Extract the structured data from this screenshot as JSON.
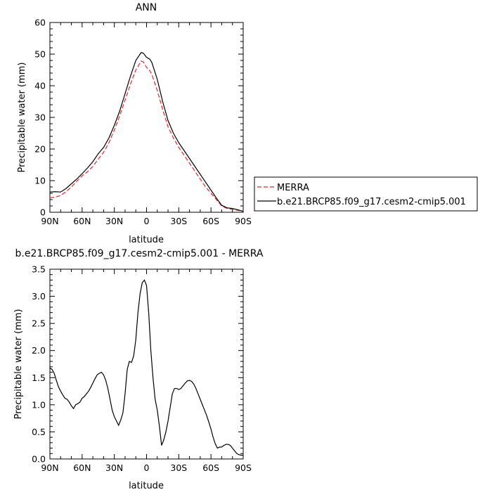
{
  "chart_data": [
    {
      "type": "line",
      "title": "ANN",
      "xlabel": "latitude",
      "ylabel": "Precipitable water (mm)",
      "xlim": [
        90,
        -90
      ],
      "ylim": [
        0,
        60
      ],
      "x_ticks": [
        90,
        60,
        30,
        0,
        -30,
        -60,
        -90
      ],
      "x_tick_labels": [
        "90N",
        "60N",
        "30N",
        "0",
        "30S",
        "60S",
        "90S"
      ],
      "y_ticks": [
        0,
        10,
        20,
        30,
        40,
        50,
        60
      ],
      "y_tick_labels": [
        "0",
        "10",
        "20",
        "30",
        "40",
        "50",
        "60"
      ],
      "legend_position": "right",
      "series": [
        {
          "name": "MERRA",
          "color": "#e8242a",
          "dash": "dashed",
          "x": [
            90,
            85,
            80,
            75,
            70,
            65,
            60,
            55,
            50,
            45,
            40,
            35,
            30,
            25,
            20,
            15,
            10,
            5,
            3,
            0,
            -3,
            -5,
            -10,
            -15,
            -20,
            -25,
            -30,
            -35,
            -40,
            -45,
            -50,
            -55,
            -60,
            -65,
            -70,
            -75,
            -80,
            -85,
            -90
          ],
          "y": [
            4.6,
            4.8,
            5.3,
            6.5,
            8.0,
            9.8,
            11.5,
            12.8,
            14.5,
            16.8,
            19.0,
            22.0,
            26.0,
            30.5,
            35.5,
            40.5,
            45.0,
            47.8,
            47.5,
            45.8,
            44.8,
            43.5,
            38.5,
            32.5,
            27.0,
            23.5,
            20.5,
            18.0,
            15.5,
            13.0,
            10.5,
            8.0,
            6.0,
            4.0,
            2.0,
            1.2,
            0.9,
            0.6,
            0.3
          ]
        },
        {
          "name": "b.e21.BRCP85.f09_g17.cesm2-cmip5.001",
          "color": "#000000",
          "dash": "solid",
          "x": [
            90,
            85,
            80,
            75,
            70,
            65,
            60,
            55,
            50,
            45,
            40,
            35,
            30,
            25,
            20,
            15,
            10,
            5,
            3,
            0,
            -3,
            -5,
            -10,
            -15,
            -20,
            -25,
            -30,
            -35,
            -40,
            -45,
            -50,
            -55,
            -60,
            -65,
            -70,
            -75,
            -80,
            -85,
            -90
          ],
          "y": [
            6.4,
            6.5,
            6.4,
            7.5,
            9.0,
            10.5,
            12.2,
            14.0,
            16.0,
            18.5,
            20.5,
            23.5,
            27.5,
            32.0,
            37.5,
            43.0,
            48.0,
            50.5,
            50.3,
            49.0,
            48.4,
            47.3,
            42.0,
            35.0,
            29.0,
            25.0,
            22.0,
            19.5,
            17.0,
            14.5,
            12.0,
            9.5,
            7.0,
            4.5,
            2.2,
            1.4,
            1.2,
            0.8,
            0.3
          ]
        }
      ]
    },
    {
      "type": "line",
      "title": "b.e21.BRCP85.f09_g17.cesm2-cmip5.001 - MERRA",
      "xlabel": "latitude",
      "ylabel": "Precipitable water (mm)",
      "xlim": [
        90,
        -90
      ],
      "ylim": [
        0,
        3.5
      ],
      "x_ticks": [
        90,
        60,
        30,
        0,
        -30,
        -60,
        -90
      ],
      "x_tick_labels": [
        "90N",
        "60N",
        "30N",
        "0",
        "30S",
        "60S",
        "90S"
      ],
      "y_ticks": [
        0,
        0.5,
        1.0,
        1.5,
        2.0,
        2.5,
        3.0,
        3.5
      ],
      "y_tick_labels": [
        "0.0",
        "0.5",
        "1.0",
        "1.5",
        "2.0",
        "2.5",
        "3.0",
        "3.5"
      ],
      "series": [
        {
          "color": "#000000",
          "dash": "solid",
          "x": [
            90,
            88,
            86,
            84,
            82,
            80,
            78,
            76,
            74,
            72,
            70,
            68,
            66,
            64,
            62,
            60,
            58,
            56,
            54,
            52,
            50,
            48,
            46,
            44,
            42,
            40,
            38,
            36,
            34,
            32,
            30,
            28,
            26,
            24,
            22,
            20,
            18,
            16,
            14,
            12,
            10,
            8,
            6,
            4,
            2,
            0,
            -2,
            -4,
            -6,
            -8,
            -10,
            -12,
            -14,
            -16,
            -18,
            -20,
            -22,
            -24,
            -26,
            -28,
            -30,
            -32,
            -34,
            -36,
            -38,
            -40,
            -42,
            -44,
            -46,
            -48,
            -50,
            -52,
            -54,
            -56,
            -58,
            -60,
            -62,
            -64,
            -66,
            -68,
            -70,
            -72,
            -74,
            -76,
            -78,
            -80,
            -82,
            -84,
            -86,
            -88,
            -90
          ],
          "y": [
            1.68,
            1.65,
            1.58,
            1.45,
            1.33,
            1.25,
            1.18,
            1.12,
            1.1,
            1.05,
            0.98,
            0.93,
            1.0,
            1.02,
            1.05,
            1.12,
            1.15,
            1.2,
            1.25,
            1.32,
            1.4,
            1.48,
            1.55,
            1.58,
            1.6,
            1.55,
            1.45,
            1.3,
            1.1,
            0.9,
            0.78,
            0.7,
            0.62,
            0.72,
            0.85,
            1.2,
            1.65,
            1.8,
            1.78,
            1.9,
            2.2,
            2.7,
            3.05,
            3.25,
            3.3,
            3.2,
            2.7,
            2.0,
            1.5,
            1.1,
            0.9,
            0.6,
            0.25,
            0.35,
            0.5,
            0.7,
            0.95,
            1.2,
            1.3,
            1.3,
            1.28,
            1.3,
            1.35,
            1.4,
            1.44,
            1.45,
            1.43,
            1.38,
            1.3,
            1.2,
            1.1,
            1.0,
            0.9,
            0.8,
            0.68,
            0.55,
            0.4,
            0.28,
            0.2,
            0.22,
            0.22,
            0.25,
            0.27,
            0.27,
            0.25,
            0.2,
            0.15,
            0.1,
            0.08,
            0.07,
            0.07
          ]
        }
      ]
    }
  ]
}
